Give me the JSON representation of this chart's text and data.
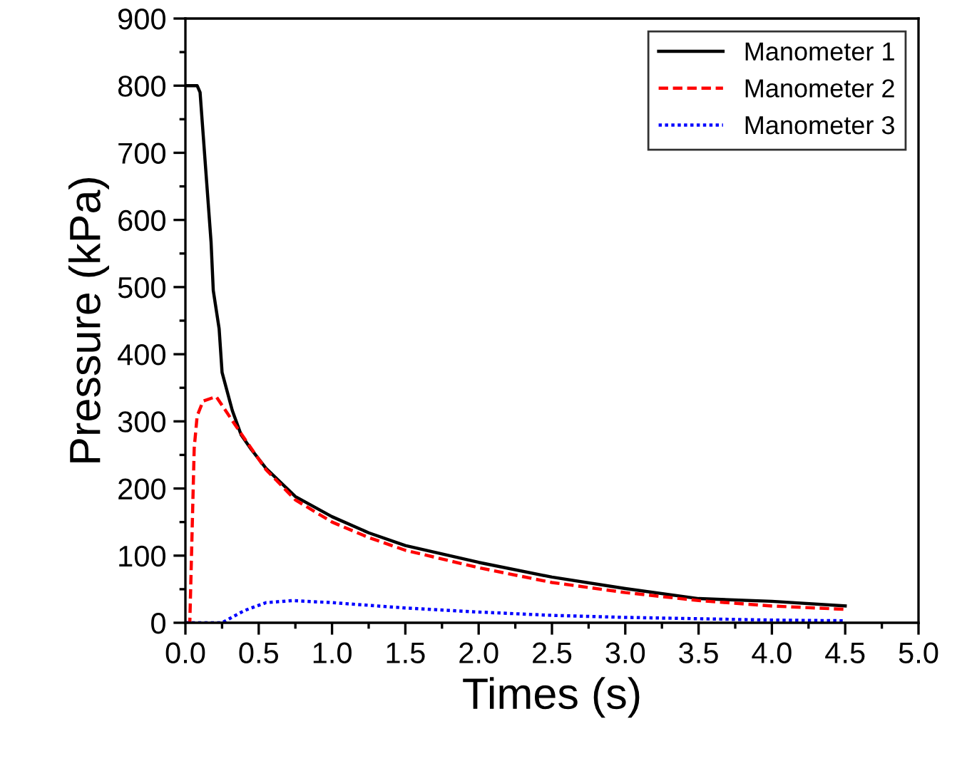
{
  "chart_data": {
    "type": "line",
    "xlabel": "Times (s)",
    "ylabel": "Pressure (kPa)",
    "xlim": [
      0,
      5
    ],
    "ylim": [
      0,
      900
    ],
    "xticks": [
      {
        "value": 0,
        "label": "0.0"
      },
      {
        "value": 0.5,
        "label": "0.5"
      },
      {
        "value": 1,
        "label": "1.0"
      },
      {
        "value": 1.5,
        "label": "1.5"
      },
      {
        "value": 2,
        "label": "2.0"
      },
      {
        "value": 2.5,
        "label": "2.5"
      },
      {
        "value": 3,
        "label": "3.0"
      },
      {
        "value": 3.5,
        "label": "3.5"
      },
      {
        "value": 4,
        "label": "4.0"
      },
      {
        "value": 4.5,
        "label": "4.5"
      },
      {
        "value": 5,
        "label": "5.0"
      }
    ],
    "yticks": [
      0,
      100,
      200,
      300,
      400,
      500,
      600,
      700,
      800,
      900
    ],
    "grid": false,
    "legend": "top right",
    "series": [
      {
        "name": "Manometer 1",
        "color": "#000000",
        "line_style": "solid",
        "x": [
          0,
          0.08,
          0.1,
          0.146,
          0.175,
          0.19,
          0.23,
          0.25,
          0.32,
          0.38,
          0.45,
          0.55,
          0.75,
          1.0,
          1.25,
          1.5,
          2.0,
          2.5,
          3.0,
          3.5,
          4.0,
          4.5
        ],
        "values": [
          800,
          800,
          790,
          653,
          567,
          495,
          438,
          373,
          316,
          280,
          258,
          230,
          188,
          158,
          134,
          115,
          90,
          68,
          51,
          36,
          32,
          25
        ]
      },
      {
        "name": "Manometer 2",
        "color": "#ff0000",
        "line_style": "dashed",
        "x": [
          0,
          0.03,
          0.06,
          0.08,
          0.12,
          0.21,
          0.32,
          0.42,
          0.55,
          0.75,
          1.0,
          1.25,
          1.5,
          2.0,
          2.5,
          3.0,
          3.5,
          4.0,
          4.5
        ],
        "values": [
          0,
          0,
          260,
          308,
          330,
          337,
          301,
          269,
          228,
          183,
          150,
          127,
          108,
          82,
          60,
          45,
          33,
          25,
          20
        ]
      },
      {
        "name": "Manometer 3",
        "color": "#0000ff",
        "line_style": "dotted",
        "x": [
          0,
          0.25,
          0.4,
          0.55,
          0.73,
          1.0,
          1.5,
          2.0,
          2.5,
          3.0,
          3.5,
          4.0,
          4.5
        ],
        "values": [
          0,
          0,
          18,
          30,
          33,
          30,
          22,
          16,
          11,
          8,
          6,
          4,
          3
        ]
      }
    ]
  }
}
